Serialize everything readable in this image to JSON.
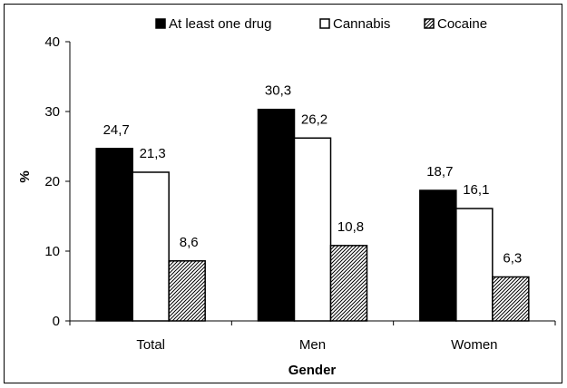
{
  "chart_data": {
    "type": "bar",
    "title": "",
    "xlabel": "Gender",
    "ylabel": "%",
    "ylim": [
      0,
      40
    ],
    "yticks": [
      0,
      10,
      20,
      30,
      40
    ],
    "grid": false,
    "legend_position": "top",
    "categories": [
      "Total",
      "Men",
      "Women"
    ],
    "series": [
      {
        "name": "At least one drug",
        "values": [
          24.7,
          30.3,
          18.7
        ],
        "labels": [
          "24,7",
          "30,3",
          "18,7"
        ],
        "fill": "solid-black"
      },
      {
        "name": "Cannabis",
        "values": [
          21.3,
          26.2,
          16.1
        ],
        "labels": [
          "21,3",
          "26,2",
          "16,1"
        ],
        "fill": "white"
      },
      {
        "name": "Cocaine",
        "values": [
          8.6,
          10.8,
          6.3
        ],
        "labels": [
          "8,6",
          "10,8",
          "6,3"
        ],
        "fill": "diagonal-hatch"
      }
    ]
  }
}
